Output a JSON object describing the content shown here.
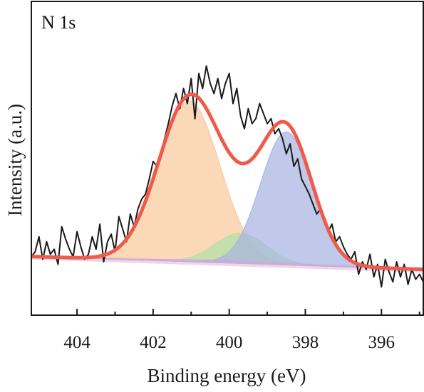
{
  "chart_data": {
    "type": "line",
    "panel_label": "N 1s",
    "xlabel": "Binding energy (eV)",
    "ylabel": "Intensity (a.u.)",
    "xlim": [
      405.2,
      394.9
    ],
    "x_reversed": true,
    "ylim": [
      0,
      1
    ],
    "x_ticks": [
      404,
      402,
      400,
      398,
      396
    ],
    "y_ticks_labeled": false,
    "grid": false,
    "legend": "none",
    "raw_data": {
      "x": [
        405.2,
        405.1,
        405.0,
        404.9,
        404.8,
        404.7,
        404.6,
        404.5,
        404.4,
        404.3,
        404.2,
        404.1,
        404.0,
        403.9,
        403.8,
        403.7,
        403.6,
        403.5,
        403.4,
        403.3,
        403.2,
        403.1,
        403.0,
        402.9,
        402.8,
        402.7,
        402.6,
        402.5,
        402.4,
        402.3,
        402.2,
        402.1,
        402.0,
        401.9,
        401.8,
        401.7,
        401.6,
        401.5,
        401.4,
        401.3,
        401.2,
        401.1,
        401.0,
        400.9,
        400.8,
        400.7,
        400.6,
        400.5,
        400.4,
        400.3,
        400.2,
        400.1,
        400.0,
        399.9,
        399.8,
        399.7,
        399.6,
        399.5,
        399.4,
        399.3,
        399.2,
        399.1,
        399.0,
        398.9,
        398.8,
        398.7,
        398.6,
        398.5,
        398.4,
        398.3,
        398.2,
        398.1,
        398.0,
        397.9,
        397.8,
        397.7,
        397.6,
        397.5,
        397.4,
        397.3,
        397.2,
        397.1,
        397.0,
        396.9,
        396.8,
        396.7,
        396.6,
        396.5,
        396.4,
        396.3,
        396.2,
        396.1,
        396.0,
        395.9,
        395.8,
        395.7,
        395.6,
        395.5,
        395.4,
        395.3,
        395.2,
        395.1,
        395.0,
        394.9
      ],
      "y": [
        0.19,
        0.21,
        0.27,
        0.18,
        0.25,
        0.2,
        0.22,
        0.16,
        0.31,
        0.26,
        0.22,
        0.19,
        0.29,
        0.23,
        0.18,
        0.2,
        0.27,
        0.22,
        0.32,
        0.17,
        0.25,
        0.28,
        0.21,
        0.35,
        0.3,
        0.25,
        0.36,
        0.31,
        0.38,
        0.42,
        0.44,
        0.5,
        0.57,
        0.55,
        0.6,
        0.66,
        0.72,
        0.79,
        0.84,
        0.78,
        0.86,
        0.8,
        0.9,
        0.74,
        0.92,
        0.86,
        0.95,
        0.88,
        0.84,
        0.9,
        0.82,
        0.88,
        0.92,
        0.8,
        0.86,
        0.75,
        0.7,
        0.78,
        0.72,
        0.74,
        0.8,
        0.76,
        0.72,
        0.74,
        0.68,
        0.7,
        0.66,
        0.6,
        0.64,
        0.55,
        0.58,
        0.5,
        0.47,
        0.44,
        0.4,
        0.36,
        0.38,
        0.33,
        0.29,
        0.32,
        0.25,
        0.27,
        0.23,
        0.2,
        0.18,
        0.21,
        0.12,
        0.17,
        0.14,
        0.2,
        0.11,
        0.16,
        0.07,
        0.18,
        0.13,
        0.09,
        0.17,
        0.11,
        0.16,
        0.08,
        0.14,
        0.1,
        0.12,
        0.09
      ]
    },
    "envelope_peak_eV": 400.85,
    "components": [
      {
        "color": "#f8c99c",
        "center_eV": 401.05,
        "height": 0.64,
        "fwhm_eV": 1.9
      },
      {
        "color": "#b2e0a6",
        "center_eV": 399.7,
        "height": 0.12,
        "fwhm_eV": 1.6
      },
      {
        "color": "#a8b4e0",
        "center_eV": 398.5,
        "height": 0.53,
        "fwhm_eV": 1.6
      },
      {
        "color": "#d0a8d8",
        "center_eV": 400.0,
        "height": 0.01,
        "fwhm_eV": 4.0
      }
    ],
    "background": {
      "color": "#e0b4d8",
      "y_at_405": 0.19,
      "y_at_395": 0.14
    },
    "colors": {
      "raw": "#1a1a1a",
      "envelope": "#ef5a4a",
      "axis": "#1a1a1a"
    }
  }
}
